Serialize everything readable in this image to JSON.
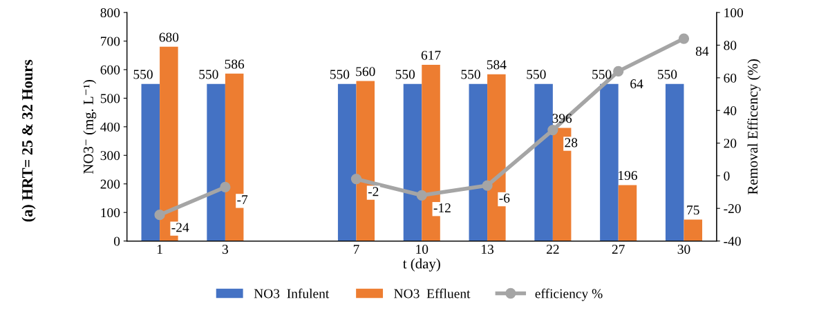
{
  "chart_data": {
    "type": "bar",
    "xlabel": "t (day)",
    "ylabel": "NO3⁻ (mg. L⁻¹)",
    "y2label": "Removal Efficency (%)",
    "annotations": [
      "(a) HRT= 25 & 32 Hours"
    ],
    "categories": [
      "1",
      "3",
      null,
      "7",
      "10",
      "13",
      "22",
      "27",
      "30"
    ],
    "series": [
      {
        "name": "NO3  Infulent",
        "color": "#4472c4",
        "values": [
          550,
          550,
          null,
          550,
          550,
          550,
          550,
          550,
          550
        ]
      },
      {
        "name": "NO3  Effluent",
        "color": "#ed7d31",
        "values": [
          680,
          586,
          null,
          560,
          617,
          584,
          396,
          196,
          75
        ]
      },
      {
        "name": "efficiency %",
        "type": "line",
        "axis": "y2",
        "color": "#a5a5a5",
        "marker": "circle",
        "values": [
          -24,
          -7,
          null,
          -2,
          -12,
          -6,
          28,
          64,
          84
        ]
      }
    ],
    "ylim": [
      0,
      800
    ],
    "yticks": [
      0,
      100,
      200,
      300,
      400,
      500,
      600,
      700,
      800
    ],
    "y2lim": [
      -40,
      100
    ],
    "y2ticks": [
      -40,
      -20,
      0,
      20,
      40,
      60,
      80,
      100
    ],
    "data_labels": true,
    "legend": "bottom",
    "grid": false
  }
}
